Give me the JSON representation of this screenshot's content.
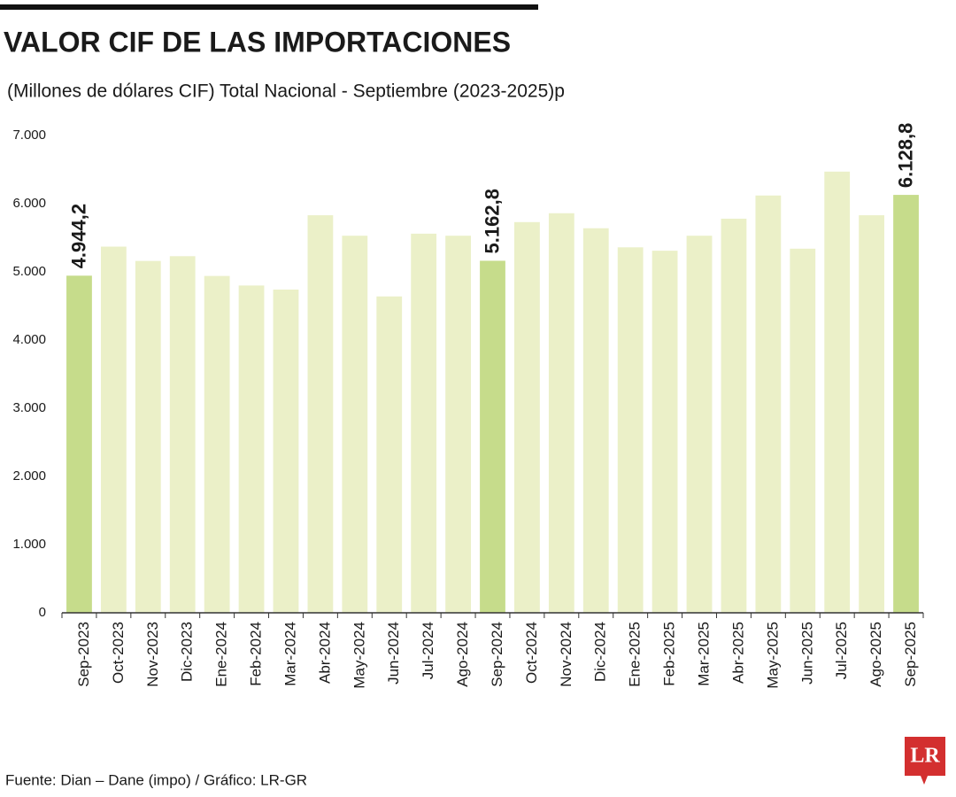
{
  "chart_data": {
    "type": "bar",
    "title": "VALOR CIF DE LAS IMPORTACIONES",
    "subtitle": "(Millones de dólares CIF) Total Nacional - Septiembre (2023-2025)p",
    "source": "Fuente: Dian – Dane (impo) / Gráfico: LR-GR",
    "logo": "LR",
    "categories": [
      "Sep-2023",
      "Oct-2023",
      "Nov-2023",
      "Dic-2023",
      "Ene-2024",
      "Feb-2024",
      "Mar-2024",
      "Abr-2024",
      "May-2024",
      "Jun-2024",
      "Jul-2024",
      "Ago-2024",
      "Sep-2024",
      "Oct-2024",
      "Nov-2024",
      "Dic-2024",
      "Ene-2025",
      "Feb-2025",
      "Mar-2025",
      "Abr-2025",
      "May-2025",
      "Jun-2025",
      "Jul-2025",
      "Ago-2025",
      "Sep-2025"
    ],
    "values": [
      4944.2,
      5370,
      5160,
      5230,
      4940,
      4800,
      4740,
      5830,
      5530,
      4640,
      5560,
      5530,
      5162.8,
      5730,
      5860,
      5640,
      5360,
      5310,
      5530,
      5780,
      6120,
      5340,
      6470,
      5830,
      6128.8
    ],
    "value_labels": [
      "4.944,2",
      null,
      null,
      null,
      null,
      null,
      null,
      null,
      null,
      null,
      null,
      null,
      "5.162,8",
      null,
      null,
      null,
      null,
      null,
      null,
      null,
      null,
      null,
      null,
      null,
      "6.128,8"
    ],
    "colors": [
      "#c6dc8b",
      "#ebf0c8",
      "#ebf0c8",
      "#ebf0c8",
      "#ebf0c8",
      "#ebf0c8",
      "#ebf0c8",
      "#ebf0c8",
      "#ebf0c8",
      "#ebf0c8",
      "#ebf0c8",
      "#ebf0c8",
      "#c6dc8b",
      "#ebf0c8",
      "#ebf0c8",
      "#ebf0c8",
      "#ebf0c8",
      "#ebf0c8",
      "#ebf0c8",
      "#ebf0c8",
      "#ebf0c8",
      "#ebf0c8",
      "#ebf0c8",
      "#ebf0c8",
      "#c6dc8b"
    ],
    "ylim": [
      0,
      7000
    ],
    "yticks": [
      0,
      {
        "value": 1000,
        "label": "1.000"
      },
      {
        "value": 2000,
        "label": "2.000"
      },
      {
        "value": 3000,
        "label": "3.000"
      },
      {
        "value": 4000,
        "label": "4.000"
      },
      {
        "value": 5000,
        "label": "5.000"
      },
      {
        "value": 6000,
        "label": "6.000"
      },
      {
        "value": 7000,
        "label": "7.000"
      }
    ],
    "grid": false
  }
}
